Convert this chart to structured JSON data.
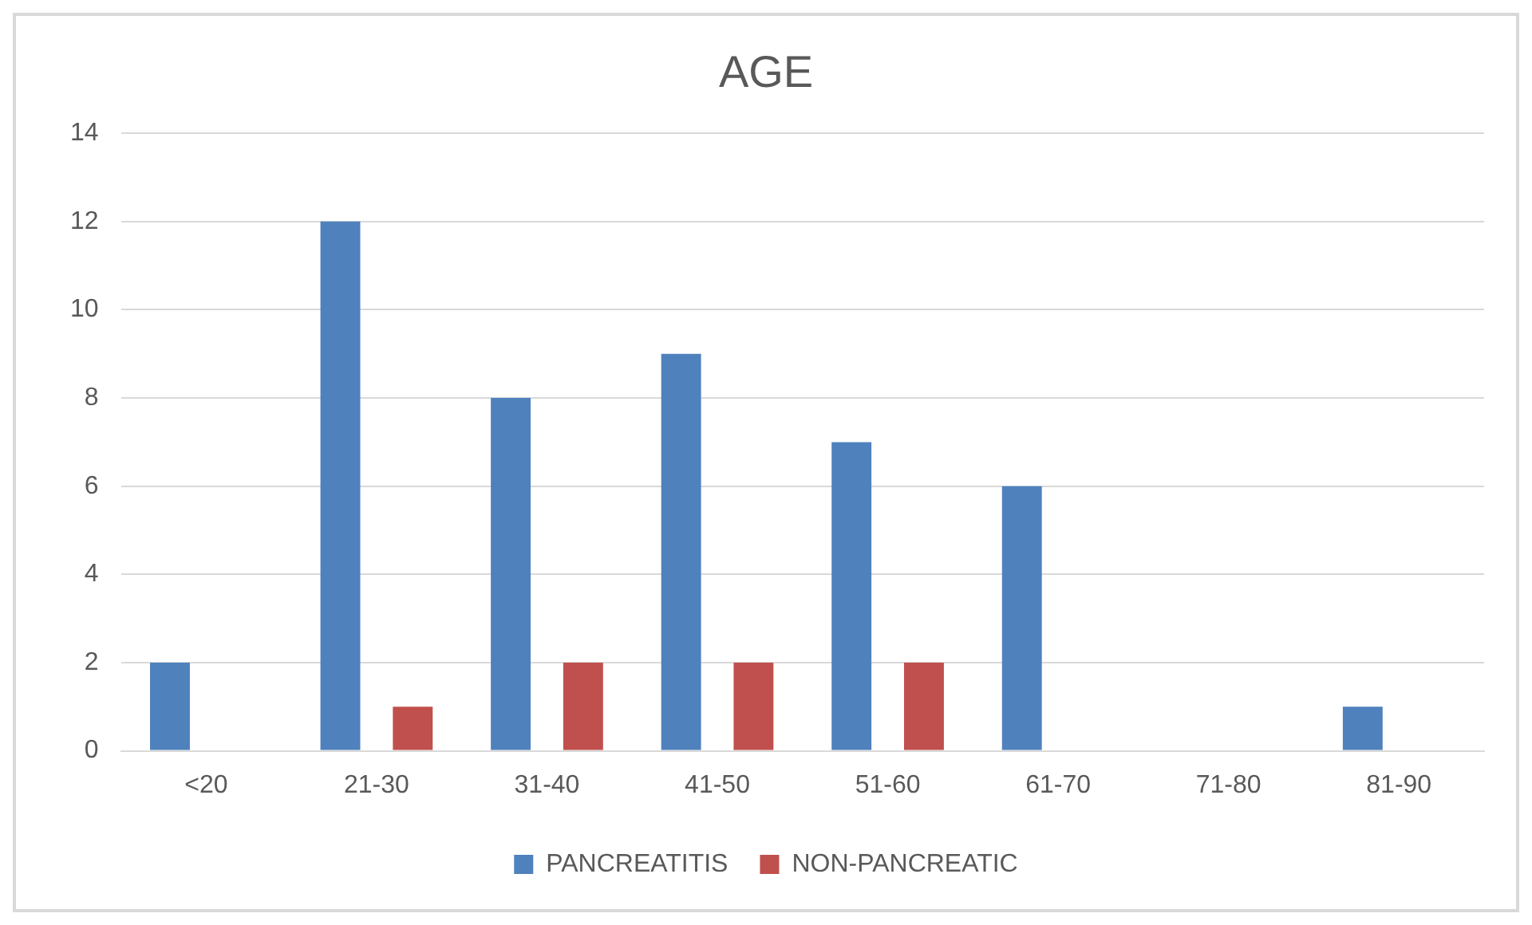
{
  "chart_data": {
    "type": "bar",
    "title": "AGE",
    "categories": [
      "<20",
      "21-30",
      "31-40",
      "41-50",
      "51-60",
      "61-70",
      "71-80",
      "81-90"
    ],
    "series": [
      {
        "name": "PANCREATITIS",
        "color": "#4f81bd",
        "values": [
          2,
          12,
          8,
          9,
          7,
          6,
          0,
          1
        ]
      },
      {
        "name": "NON-PANCREATIC",
        "color": "#c0504d",
        "values": [
          0,
          1,
          2,
          2,
          2,
          0,
          0,
          0
        ]
      }
    ],
    "ylim": [
      0,
      14
    ],
    "yticks": [
      0,
      2,
      4,
      6,
      8,
      10,
      12,
      14
    ],
    "grid": "y",
    "legend": "bottom"
  }
}
